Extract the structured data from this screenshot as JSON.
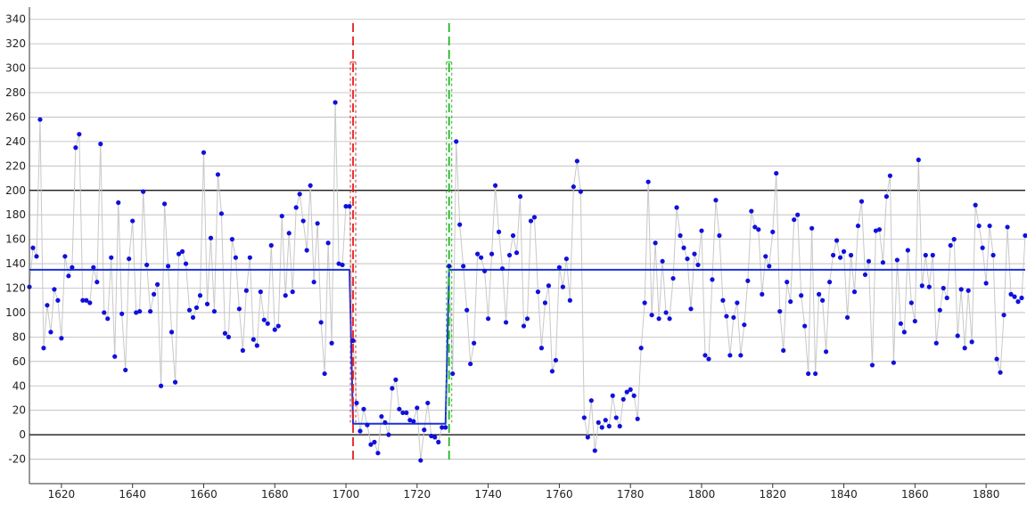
{
  "chart_data": {
    "type": "line",
    "title": "",
    "xlabel": "",
    "ylabel": "",
    "xlim": [
      1611,
      1891
    ],
    "ylim": [
      -40,
      350
    ],
    "y_ticks": [
      -20,
      0,
      20,
      40,
      60,
      80,
      100,
      120,
      140,
      160,
      180,
      200,
      220,
      240,
      260,
      280,
      300,
      320,
      340
    ],
    "x_ticks": [
      1620,
      1640,
      1660,
      1680,
      1700,
      1720,
      1740,
      1760,
      1780,
      1800,
      1820,
      1840,
      1860,
      1880
    ],
    "grid": true,
    "reference_lines": [
      0,
      200
    ],
    "change_points": [
      {
        "x": 1702,
        "color": "#e02020",
        "style": "dashed",
        "y_range": [
          10,
          305
        ]
      },
      {
        "x": 1729,
        "color": "#22b822",
        "style": "dashed",
        "y_range": [
          10,
          305
        ]
      }
    ],
    "segment_means": [
      {
        "x_start": 1611,
        "x_end": 1701,
        "value": 135
      },
      {
        "x_start": 1702,
        "x_end": 1728,
        "value": 9
      },
      {
        "x_start": 1729,
        "x_end": 1891,
        "value": 135
      }
    ],
    "series": [
      {
        "x_start": 1611,
        "x_step": 1,
        "values": [
          121,
          153,
          146,
          258,
          71,
          106,
          84,
          119,
          110,
          79,
          146,
          130,
          137,
          235,
          246,
          110,
          110,
          108,
          137,
          125,
          238,
          100,
          95,
          145,
          64,
          190,
          99,
          53,
          144,
          175,
          100,
          101,
          199,
          139,
          101,
          115,
          123,
          40,
          189,
          138,
          84,
          43,
          148,
          150,
          140,
          102,
          96,
          104,
          114,
          231,
          107,
          161,
          101,
          213,
          181,
          83,
          80,
          160,
          145,
          103,
          69,
          118,
          145,
          78,
          73,
          117,
          94,
          91,
          155,
          86,
          89,
          179,
          114,
          165,
          117,
          186,
          197,
          175,
          151,
          204,
          125,
          173,
          92,
          50,
          157,
          75,
          272,
          140,
          139,
          187,
          187,
          77,
          26,
          3,
          21,
          8,
          -8,
          -6,
          -15,
          15,
          10,
          0,
          38,
          45,
          21,
          18,
          18,
          12,
          11,
          22,
          -21,
          4,
          26,
          -1,
          -2,
          -6,
          6,
          6,
          138,
          50,
          240,
          172,
          138,
          102,
          58,
          75,
          148,
          145,
          134,
          95,
          148,
          204,
          166,
          136,
          92,
          147,
          163,
          149,
          195,
          89,
          95,
          175,
          178,
          117,
          71,
          108,
          122,
          52,
          61,
          137,
          121,
          144,
          110,
          203,
          224,
          199,
          14,
          -2,
          28,
          -13,
          10,
          6,
          12,
          7,
          32,
          14,
          7,
          29,
          35,
          37,
          32,
          13,
          71,
          108,
          207,
          98,
          157,
          95,
          142,
          100,
          95,
          128,
          186,
          163,
          153,
          144,
          103,
          148,
          139,
          167,
          65,
          62,
          127,
          192,
          163,
          110,
          97,
          65,
          96,
          108,
          65,
          90,
          126,
          183,
          170,
          168,
          115,
          146,
          138,
          166,
          214,
          101,
          69,
          125,
          109,
          176,
          180,
          114,
          89,
          50,
          169,
          50,
          115,
          110,
          68,
          125,
          147,
          159,
          145,
          150,
          96,
          147,
          117,
          171,
          191,
          131,
          142,
          57,
          167,
          168,
          141,
          195,
          212,
          59,
          143,
          91,
          84,
          151,
          108,
          93,
          225,
          122,
          147,
          121,
          147,
          75,
          102,
          120,
          112,
          155,
          160,
          81,
          119,
          71,
          118,
          76,
          188,
          171,
          153,
          124,
          171,
          147,
          62,
          51,
          98,
          170,
          115,
          113,
          109,
          112,
          163
        ]
      }
    ],
    "colors": {
      "point": "#1010dd",
      "connector": "#c8c8c8",
      "mean_line": "#1a32d8",
      "grid": "#b8b8b8",
      "reference": "#000000"
    }
  }
}
